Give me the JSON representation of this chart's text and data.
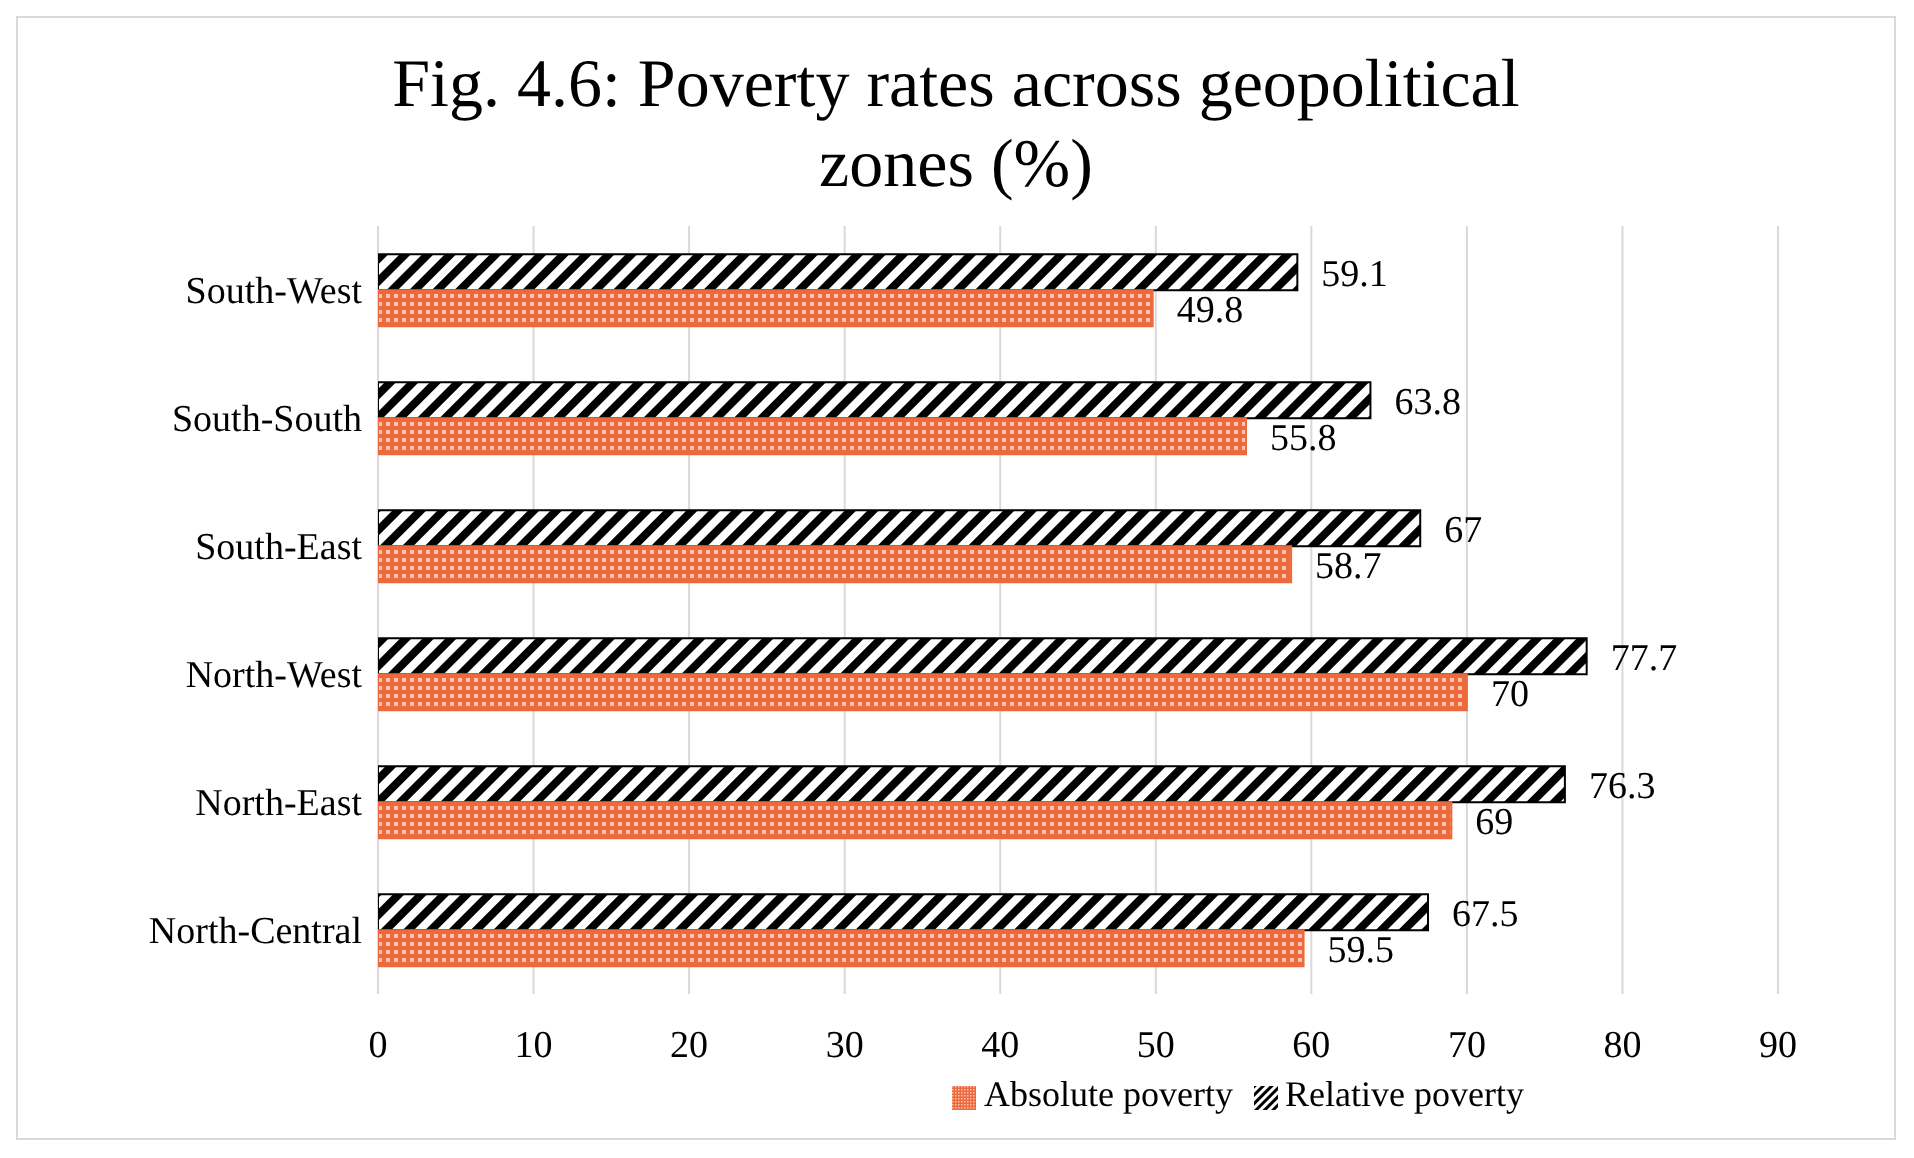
{
  "chart_data": {
    "type": "bar",
    "orientation": "horizontal",
    "title": "Fig. 4.6: Poverty rates across geopolitical zones (%)",
    "categories": [
      "South-West",
      "South-South",
      "South-East",
      "North-West",
      "North-East",
      "North-Central"
    ],
    "series": [
      {
        "name": "Relative poverty",
        "color": "#000000",
        "values": [
          59.1,
          63.8,
          67,
          77.7,
          76.3,
          67.5
        ]
      },
      {
        "name": "Absolute poverty",
        "color": "#ed6a3c",
        "values": [
          49.8,
          55.8,
          58.7,
          70,
          69,
          59.5
        ]
      }
    ],
    "xlim": [
      0,
      90
    ],
    "xticks": [
      0,
      10,
      20,
      30,
      40,
      50,
      60,
      70,
      80,
      90
    ],
    "grid": "x",
    "legend": "bottom",
    "data_labels": true
  }
}
